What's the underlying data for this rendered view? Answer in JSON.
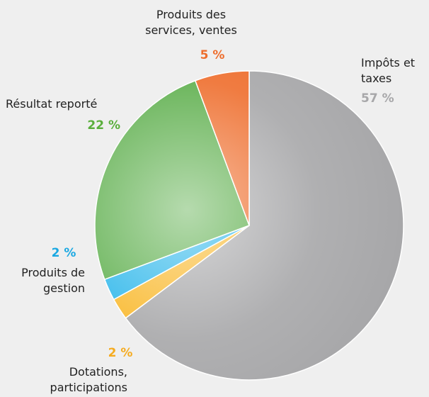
{
  "chart_data": {
    "type": "pie",
    "categories": [
      "Impôts et taxes",
      "Dotations, participations",
      "Produits de gestion",
      "Résultat reporté",
      "Produits des services, ventes"
    ],
    "values": [
      57,
      2,
      2,
      22,
      5
    ],
    "value_labels": [
      "57 %",
      "2 %",
      "2 %",
      "22 %",
      "5 %"
    ],
    "colors": [
      "#a7a7a9",
      "#f9b82b",
      "#2bb6ea",
      "#5cae4b",
      "#ee6d2c"
    ],
    "label_colors": [
      "#a7a7a9",
      "#f5ab1f",
      "#1aa8e2",
      "#5aae3c",
      "#ee6d2c"
    ]
  }
}
